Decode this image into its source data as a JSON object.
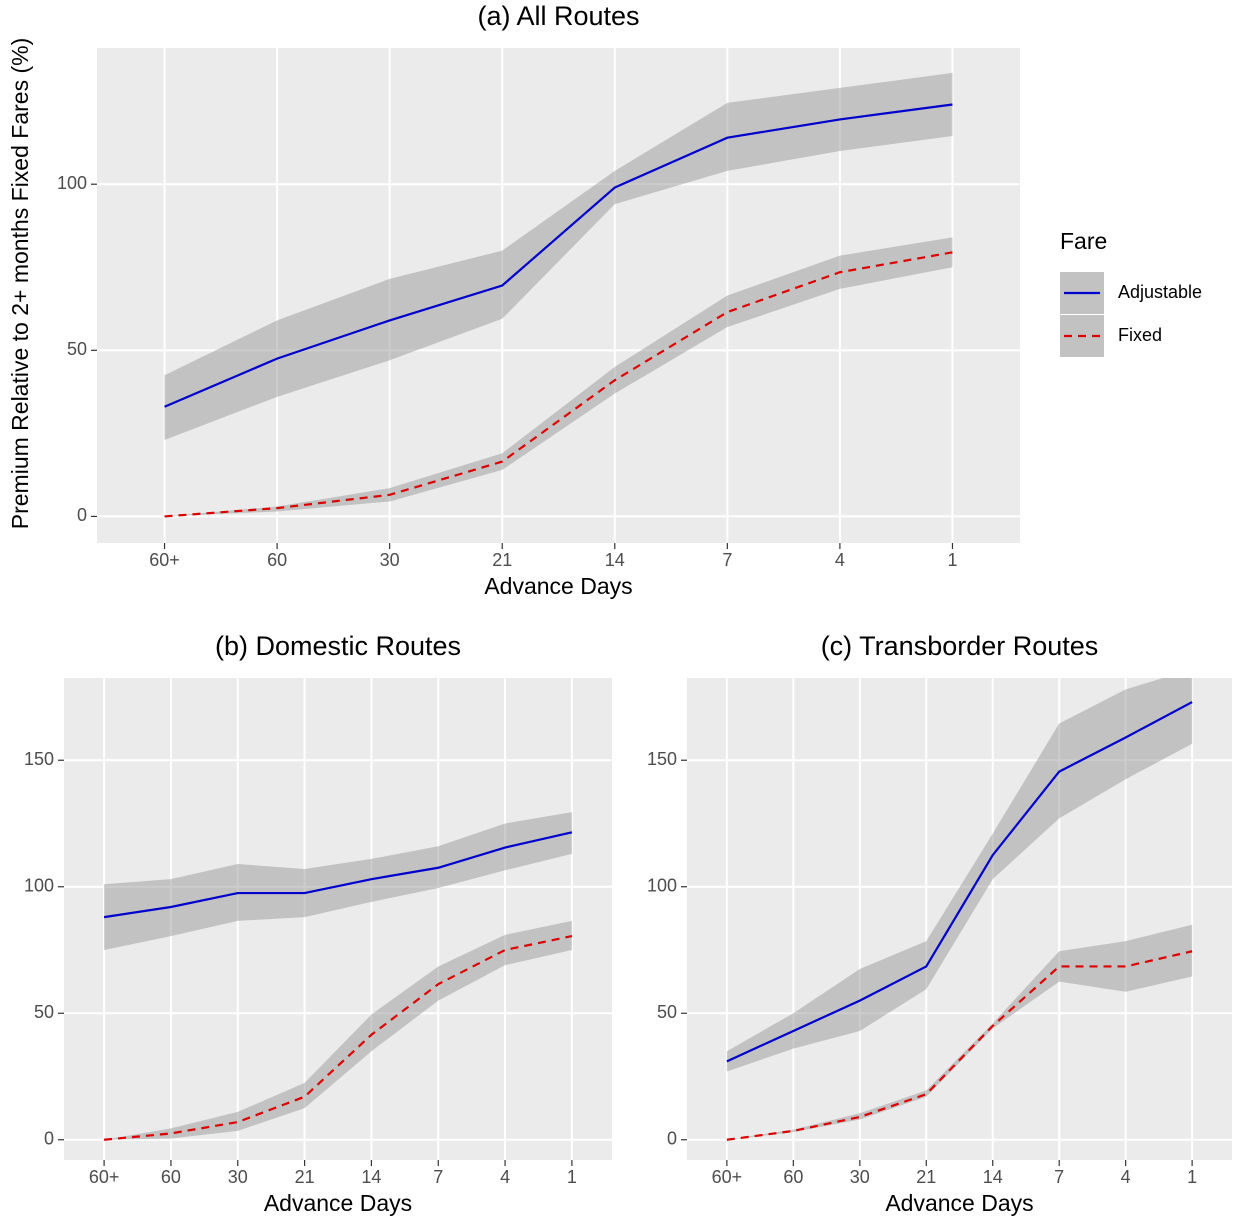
{
  "chart_data": [
    {
      "type": "line",
      "title": "(a) All Routes",
      "x_label": "Advance Days",
      "y_label": "Premium Relative to 2+ months Fixed Fares (%)",
      "categories": [
        "60+",
        "60",
        "30",
        "21",
        "14",
        "7",
        "4",
        "1"
      ],
      "ylim": [
        -8,
        141
      ],
      "yticks": [
        0,
        50,
        100
      ],
      "grid": true,
      "legend_title": "Fare",
      "legend": "right",
      "series": [
        {
          "name": "Adjustable",
          "color": "#0000cc",
          "linestyle": "solid",
          "values": [
            33,
            47.5,
            59,
            69.5,
            99,
            114,
            119.5,
            124
          ],
          "upper": [
            42.5,
            59,
            71.5,
            80,
            104,
            124.5,
            129,
            133.5
          ],
          "lower": [
            23,
            36,
            47,
            59.5,
            94,
            104,
            110,
            114.5
          ]
        },
        {
          "name": "Fixed",
          "color": "#dd0000",
          "linestyle": "dashed",
          "values": [
            0,
            2.5,
            6.5,
            16.5,
            41,
            61.5,
            73.5,
            79.5
          ],
          "upper": [
            0,
            3,
            8.5,
            19,
            45,
            66.5,
            78.5,
            84
          ],
          "lower": [
            0,
            1.5,
            4.5,
            14,
            37,
            57,
            68.5,
            75
          ]
        }
      ]
    },
    {
      "type": "line",
      "title": "(b) Domestic Routes",
      "x_label": "Advance Days",
      "categories": [
        "60+",
        "60",
        "30",
        "21",
        "14",
        "7",
        "4",
        "1"
      ],
      "ylim": [
        -8,
        182.5
      ],
      "yticks": [
        0,
        50,
        100,
        150
      ],
      "grid": true,
      "series": [
        {
          "name": "Adjustable",
          "color": "#0000cc",
          "linestyle": "solid",
          "values": [
            88,
            92,
            97.5,
            97.5,
            103,
            107.5,
            115.5,
            121.5
          ],
          "upper": [
            101,
            103,
            109,
            107,
            111,
            116,
            125,
            129.5
          ],
          "lower": [
            75,
            80.5,
            86.5,
            88,
            94,
            99.5,
            106.5,
            113
          ]
        },
        {
          "name": "Fixed",
          "color": "#dd0000",
          "linestyle": "dashed",
          "values": [
            0,
            2.5,
            7,
            17,
            41.5,
            61.5,
            75,
            80.5
          ],
          "upper": [
            0,
            4.5,
            11,
            22.5,
            49.5,
            68.5,
            81,
            86.5
          ],
          "lower": [
            0,
            0.5,
            3.5,
            12.5,
            35,
            55,
            69,
            75
          ]
        }
      ]
    },
    {
      "type": "line",
      "title": "(c) Transborder Routes",
      "x_label": "Advance Days",
      "categories": [
        "60+",
        "60",
        "30",
        "21",
        "14",
        "7",
        "4",
        "1"
      ],
      "ylim": [
        -8,
        182.5
      ],
      "yticks": [
        0,
        50,
        100,
        150
      ],
      "grid": true,
      "series": [
        {
          "name": "Adjustable",
          "color": "#0000cc",
          "linestyle": "solid",
          "values": [
            31,
            43,
            55,
            68.5,
            112.5,
            145.5,
            159,
            173
          ],
          "upper": [
            35,
            50,
            67.5,
            78.5,
            121,
            164.5,
            178,
            186
          ],
          "lower": [
            27,
            36,
            43,
            59.5,
            103,
            127,
            142.5,
            156.5
          ]
        },
        {
          "name": "Fixed",
          "color": "#dd0000",
          "linestyle": "dashed",
          "values": [
            0,
            3.5,
            9,
            18,
            45,
            68.5,
            68.5,
            74.5
          ],
          "upper": [
            0,
            4,
            10.5,
            19.5,
            46,
            74.5,
            78.5,
            85
          ],
          "lower": [
            0,
            3,
            8,
            17,
            44,
            62.5,
            58.5,
            64.5
          ]
        }
      ]
    }
  ]
}
